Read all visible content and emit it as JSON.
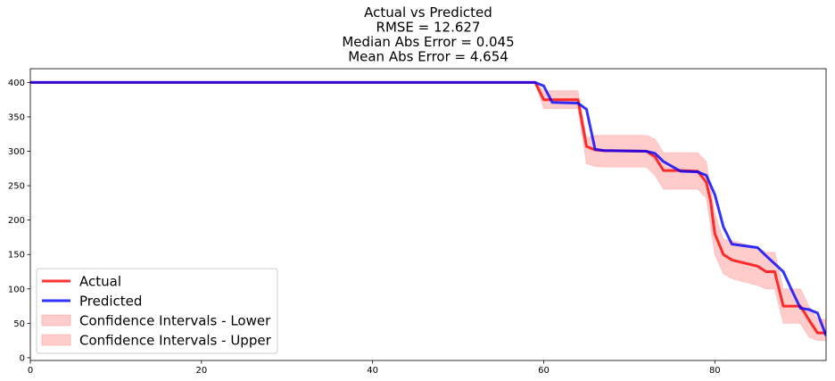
{
  "chart_data": {
    "type": "line",
    "title_lines": [
      "Actual vs Predicted",
      "RMSE = 12.627",
      "Median Abs Error = 0.045",
      "Mean Abs Error = 4.654"
    ],
    "xlabel": "",
    "ylabel": "",
    "xlim": [
      0,
      93
    ],
    "ylim": [
      -4,
      420
    ],
    "x_ticks": [
      0,
      20,
      40,
      60,
      80
    ],
    "y_ticks": [
      0,
      50,
      100,
      150,
      200,
      250,
      300,
      350,
      400
    ],
    "grid": false,
    "legend_position": "lower-left",
    "series": [
      {
        "name": "Actual",
        "kind": "line",
        "color": "#ff0000",
        "x": [
          0,
          59,
          60,
          61,
          64,
          65,
          66,
          67,
          72,
          73,
          74,
          76,
          78,
          79,
          79.5,
          80,
          81,
          82,
          85,
          86,
          87,
          88,
          90,
          91,
          92,
          93
        ],
        "y": [
          400,
          400,
          375,
          375,
          375,
          307,
          302,
          301,
          300,
          292,
          272,
          272,
          271,
          255,
          228,
          180,
          150,
          142,
          133,
          125,
          125,
          75,
          75,
          55,
          36,
          36
        ]
      },
      {
        "name": "Predicted",
        "kind": "line",
        "color": "#0000ff",
        "x": [
          0,
          59,
          60,
          61,
          64,
          65,
          66,
          67,
          72,
          73,
          74,
          76,
          78,
          79,
          80,
          81,
          82,
          85,
          86,
          88,
          89,
          90,
          91,
          92,
          93
        ],
        "y": [
          400,
          400,
          395,
          371,
          370,
          361,
          303,
          301,
          300,
          297,
          285,
          271,
          270,
          265,
          237,
          190,
          165,
          160,
          148,
          125,
          98,
          72,
          70,
          65,
          32
        ]
      },
      {
        "name": "Confidence Intervals - Lower",
        "kind": "band",
        "color": "#ff9999",
        "x": [
          0,
          59,
          60,
          61,
          64,
          65,
          66,
          67,
          72,
          73,
          74,
          76,
          78,
          79,
          80,
          81,
          82,
          85,
          86,
          87,
          88,
          90,
          91,
          92,
          93
        ],
        "y": [
          400,
          400,
          362,
          362,
          362,
          282,
          278,
          277,
          277,
          265,
          245,
          245,
          245,
          232,
          150,
          122,
          115,
          105,
          100,
          100,
          50,
          50,
          30,
          25,
          25
        ]
      },
      {
        "name": "Confidence Intervals - Upper",
        "kind": "band",
        "color": "#ff9999",
        "x": [
          0,
          59,
          60,
          61,
          64,
          65,
          66,
          67,
          72,
          73,
          74,
          76,
          78,
          79,
          80,
          81,
          82,
          85,
          86,
          87,
          88,
          90,
          91,
          92,
          93
        ],
        "y": [
          400,
          400,
          388,
          388,
          388,
          320,
          323,
          323,
          323,
          318,
          298,
          298,
          298,
          285,
          210,
          172,
          170,
          160,
          153,
          153,
          100,
          100,
          75,
          56,
          56
        ]
      }
    ]
  }
}
